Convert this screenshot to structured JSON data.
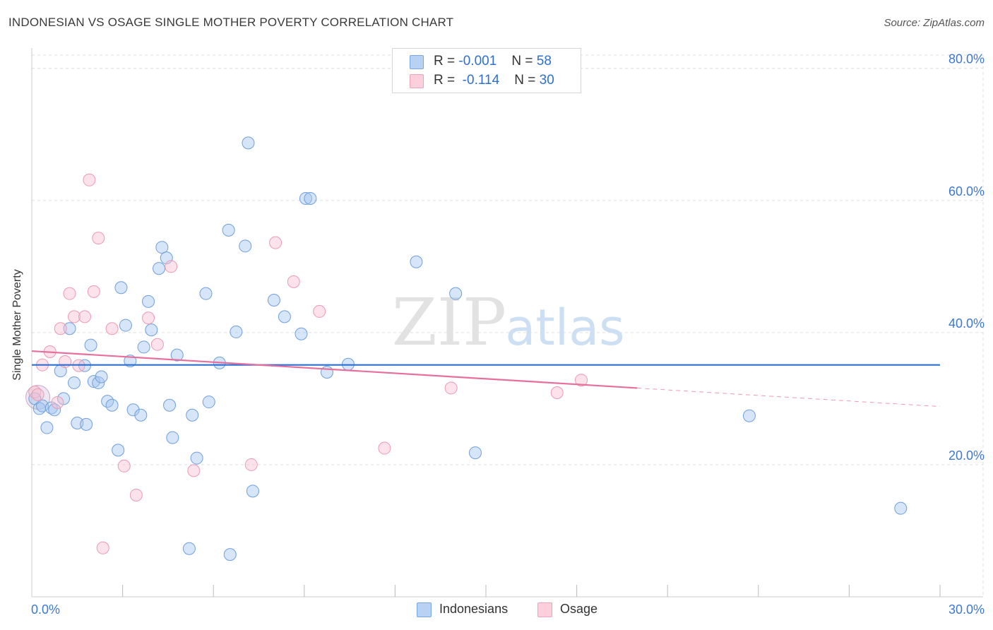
{
  "header": {
    "title": "INDONESIAN VS OSAGE SINGLE MOTHER POVERTY CORRELATION CHART",
    "source": "Source: ZipAtlas.com"
  },
  "watermark": {
    "zip": "ZIP",
    "atlas": "atlas"
  },
  "legend": {
    "r_label": "R =",
    "n_label": "N =",
    "rows": [
      {
        "r": "-0.001",
        "n": "58",
        "fill": "#b9d2f3",
        "stroke": "#7aa6e0"
      },
      {
        "r": "-0.114",
        "n": "30",
        "fill": "#fbd0dc",
        "stroke": "#eea3b8"
      }
    ]
  },
  "bottom_legend": {
    "items": [
      {
        "label": "Indonesians",
        "fill": "#b9d2f3",
        "stroke": "#7aa6e0"
      },
      {
        "label": "Osage",
        "fill": "#fbd0dc",
        "stroke": "#eea3b8"
      }
    ]
  },
  "colors": {
    "blue_point_fill": "rgba(164,197,240,0.45)",
    "blue_point_stroke": "#6f9fdc",
    "pink_point_fill": "rgba(248,190,208,0.45)",
    "pink_point_stroke": "#ec9ab2",
    "blue_line": "#2c6fd3",
    "pink_line": "#e66f9b",
    "axis_label": "#3d78cf",
    "grid": "#dddddd"
  },
  "chart_data": {
    "type": "scatter",
    "title": "INDONESIAN VS OSAGE SINGLE MOTHER POVERTY CORRELATION CHART",
    "xlabel": "",
    "ylabel": "Single Mother Poverty",
    "xlim": [
      0,
      30
    ],
    "ylim": [
      0,
      82
    ],
    "x_tick_labels": [
      "0.0%",
      "30.0%"
    ],
    "y_ticks": [
      20,
      40,
      60,
      80
    ],
    "y_tick_labels": [
      "20.0%",
      "40.0%",
      "60.0%",
      "80.0%"
    ],
    "series": [
      {
        "name": "Indonesians",
        "r": -0.001,
        "n": 58,
        "trend": {
          "x": [
            0,
            30
          ],
          "y": [
            35.1,
            35.1
          ]
        },
        "points": [
          [
            0.1,
            30.0
          ],
          [
            0.25,
            28.5
          ],
          [
            0.35,
            28.9
          ],
          [
            0.5,
            25.6
          ],
          [
            0.65,
            28.6
          ],
          [
            0.75,
            28.3
          ],
          [
            0.95,
            34.2
          ],
          [
            1.05,
            30.0
          ],
          [
            1.25,
            40.6
          ],
          [
            1.4,
            32.4
          ],
          [
            1.5,
            26.3
          ],
          [
            1.75,
            35.0
          ],
          [
            1.8,
            26.1
          ],
          [
            1.95,
            38.1
          ],
          [
            2.05,
            32.6
          ],
          [
            2.2,
            32.4
          ],
          [
            2.3,
            33.3
          ],
          [
            2.5,
            29.6
          ],
          [
            2.65,
            29.0
          ],
          [
            2.85,
            22.2
          ],
          [
            2.95,
            46.8
          ],
          [
            3.1,
            41.1
          ],
          [
            3.25,
            35.7
          ],
          [
            3.35,
            28.3
          ],
          [
            3.6,
            27.5
          ],
          [
            3.7,
            37.8
          ],
          [
            3.85,
            44.7
          ],
          [
            3.95,
            40.4
          ],
          [
            4.2,
            49.7
          ],
          [
            4.3,
            52.9
          ],
          [
            4.45,
            51.3
          ],
          [
            4.55,
            29.0
          ],
          [
            4.65,
            24.1
          ],
          [
            4.8,
            36.6
          ],
          [
            5.2,
            7.3
          ],
          [
            5.3,
            27.5
          ],
          [
            5.45,
            21.0
          ],
          [
            5.75,
            45.9
          ],
          [
            5.85,
            29.5
          ],
          [
            6.2,
            35.4
          ],
          [
            6.5,
            55.5
          ],
          [
            6.55,
            6.4
          ],
          [
            6.75,
            40.1
          ],
          [
            7.05,
            53.1
          ],
          [
            7.15,
            68.7
          ],
          [
            7.3,
            16.0
          ],
          [
            8.0,
            44.9
          ],
          [
            8.35,
            42.4
          ],
          [
            8.9,
            39.8
          ],
          [
            9.05,
            60.3
          ],
          [
            9.2,
            60.3
          ],
          [
            9.75,
            34.0
          ],
          [
            10.45,
            35.2
          ],
          [
            12.7,
            50.7
          ],
          [
            14.0,
            45.9
          ],
          [
            14.65,
            21.8
          ],
          [
            23.7,
            27.4
          ],
          [
            28.7,
            13.4
          ]
        ]
      },
      {
        "name": "Osage",
        "r": -0.114,
        "n": 30,
        "trend": {
          "x": [
            0,
            20.0
          ],
          "y": [
            37.2,
            31.6
          ]
        },
        "trend_dashed": {
          "x": [
            20.0,
            30
          ],
          "y": [
            31.6,
            28.8
          ]
        },
        "points": [
          [
            0.1,
            31.0
          ],
          [
            0.2,
            30.6
          ],
          [
            0.35,
            35.1
          ],
          [
            0.6,
            37.1
          ],
          [
            0.85,
            29.4
          ],
          [
            0.95,
            40.6
          ],
          [
            1.1,
            35.6
          ],
          [
            1.25,
            45.9
          ],
          [
            1.4,
            42.4
          ],
          [
            1.55,
            35.0
          ],
          [
            1.75,
            42.4
          ],
          [
            1.9,
            63.1
          ],
          [
            2.05,
            46.2
          ],
          [
            2.2,
            54.3
          ],
          [
            2.35,
            7.4
          ],
          [
            2.65,
            40.6
          ],
          [
            3.05,
            19.8
          ],
          [
            3.45,
            15.4
          ],
          [
            3.85,
            42.2
          ],
          [
            4.15,
            38.2
          ],
          [
            4.6,
            50.0
          ],
          [
            5.35,
            19.1
          ],
          [
            7.25,
            20.0
          ],
          [
            8.05,
            53.6
          ],
          [
            8.65,
            47.7
          ],
          [
            9.5,
            43.2
          ],
          [
            11.65,
            22.5
          ],
          [
            13.85,
            31.6
          ],
          [
            17.35,
            30.9
          ],
          [
            18.15,
            32.8
          ]
        ]
      }
    ]
  }
}
